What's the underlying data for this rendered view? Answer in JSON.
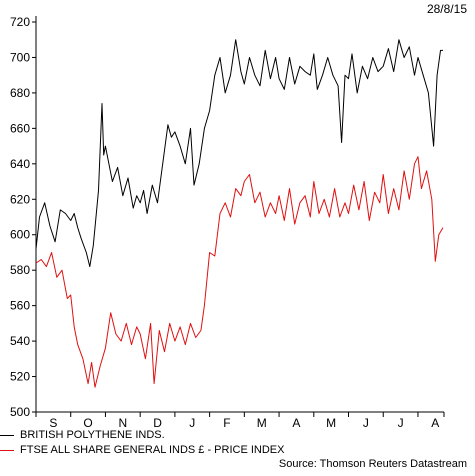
{
  "chart_data": {
    "type": "line",
    "date_label": "28/8/15",
    "source": "Source: Thomson Reuters Datastream",
    "y_ticks": [
      500,
      520,
      540,
      560,
      580,
      600,
      620,
      640,
      660,
      680,
      700,
      720
    ],
    "ylim": [
      500,
      720
    ],
    "month_labels": [
      "S",
      "O",
      "N",
      "D",
      "J",
      "F",
      "M",
      "A",
      "M",
      "J",
      "J",
      "A"
    ],
    "series": [
      {
        "name": "BRITISH POLYTHENE INDS.",
        "color": "#000000",
        "values": [
          [
            0.0,
            592
          ],
          [
            0.1,
            610
          ],
          [
            0.25,
            618
          ],
          [
            0.4,
            605
          ],
          [
            0.55,
            596
          ],
          [
            0.7,
            614
          ],
          [
            0.85,
            612
          ],
          [
            1.0,
            608
          ],
          [
            1.1,
            612
          ],
          [
            1.2,
            604
          ],
          [
            1.3,
            598
          ],
          [
            1.45,
            590
          ],
          [
            1.55,
            582
          ],
          [
            1.65,
            594
          ],
          [
            1.8,
            625
          ],
          [
            1.9,
            674
          ],
          [
            1.95,
            645
          ],
          [
            2.0,
            650
          ],
          [
            2.1,
            640
          ],
          [
            2.2,
            630
          ],
          [
            2.35,
            638
          ],
          [
            2.5,
            622
          ],
          [
            2.65,
            632
          ],
          [
            2.8,
            615
          ],
          [
            2.9,
            622
          ],
          [
            3.0,
            618
          ],
          [
            3.1,
            625
          ],
          [
            3.2,
            612
          ],
          [
            3.35,
            628
          ],
          [
            3.5,
            618
          ],
          [
            3.65,
            640
          ],
          [
            3.8,
            662
          ],
          [
            3.9,
            655
          ],
          [
            4.0,
            658
          ],
          [
            4.15,
            650
          ],
          [
            4.3,
            640
          ],
          [
            4.45,
            660
          ],
          [
            4.55,
            628
          ],
          [
            4.7,
            640
          ],
          [
            4.85,
            660
          ],
          [
            5.0,
            670
          ],
          [
            5.15,
            690
          ],
          [
            5.3,
            700
          ],
          [
            5.45,
            680
          ],
          [
            5.6,
            690
          ],
          [
            5.75,
            710
          ],
          [
            5.9,
            692
          ],
          [
            6.0,
            685
          ],
          [
            6.15,
            700
          ],
          [
            6.3,
            690
          ],
          [
            6.45,
            684
          ],
          [
            6.6,
            704
          ],
          [
            6.75,
            688
          ],
          [
            6.9,
            700
          ],
          [
            7.0,
            688
          ],
          [
            7.15,
            682
          ],
          [
            7.3,
            700
          ],
          [
            7.45,
            685
          ],
          [
            7.6,
            695
          ],
          [
            7.75,
            692
          ],
          [
            7.9,
            690
          ],
          [
            8.0,
            702
          ],
          [
            8.1,
            682
          ],
          [
            8.25,
            690
          ],
          [
            8.4,
            700
          ],
          [
            8.55,
            690
          ],
          [
            8.7,
            684
          ],
          [
            8.8,
            652
          ],
          [
            8.9,
            690
          ],
          [
            9.0,
            688
          ],
          [
            9.1,
            702
          ],
          [
            9.25,
            680
          ],
          [
            9.4,
            695
          ],
          [
            9.55,
            688
          ],
          [
            9.7,
            700
          ],
          [
            9.85,
            692
          ],
          [
            10.0,
            695
          ],
          [
            10.15,
            705
          ],
          [
            10.3,
            692
          ],
          [
            10.45,
            710
          ],
          [
            10.6,
            700
          ],
          [
            10.75,
            706
          ],
          [
            10.9,
            690
          ],
          [
            11.0,
            700
          ],
          [
            11.15,
            690
          ],
          [
            11.3,
            680
          ],
          [
            11.45,
            650
          ],
          [
            11.55,
            690
          ],
          [
            11.65,
            704
          ],
          [
            11.72,
            704
          ]
        ]
      },
      {
        "name": "FTSE ALL SHARE GENERAL INDS £ - PRICE INDEX",
        "color": "#e01010",
        "values": [
          [
            0.0,
            584
          ],
          [
            0.15,
            586
          ],
          [
            0.3,
            582
          ],
          [
            0.45,
            590
          ],
          [
            0.6,
            576
          ],
          [
            0.75,
            580
          ],
          [
            0.9,
            564
          ],
          [
            1.0,
            566
          ],
          [
            1.1,
            548
          ],
          [
            1.2,
            538
          ],
          [
            1.35,
            530
          ],
          [
            1.5,
            516
          ],
          [
            1.6,
            528
          ],
          [
            1.7,
            514
          ],
          [
            1.85,
            526
          ],
          [
            2.0,
            536
          ],
          [
            2.15,
            556
          ],
          [
            2.3,
            544
          ],
          [
            2.45,
            540
          ],
          [
            2.6,
            550
          ],
          [
            2.75,
            538
          ],
          [
            2.9,
            548
          ],
          [
            3.0,
            544
          ],
          [
            3.15,
            530
          ],
          [
            3.3,
            550
          ],
          [
            3.4,
            516
          ],
          [
            3.55,
            546
          ],
          [
            3.7,
            534
          ],
          [
            3.85,
            550
          ],
          [
            4.0,
            540
          ],
          [
            4.15,
            548
          ],
          [
            4.3,
            538
          ],
          [
            4.45,
            550
          ],
          [
            4.6,
            542
          ],
          [
            4.75,
            546
          ],
          [
            4.85,
            560
          ],
          [
            5.0,
            590
          ],
          [
            5.15,
            588
          ],
          [
            5.3,
            612
          ],
          [
            5.45,
            618
          ],
          [
            5.6,
            610
          ],
          [
            5.75,
            626
          ],
          [
            5.9,
            622
          ],
          [
            6.0,
            630
          ],
          [
            6.15,
            634
          ],
          [
            6.3,
            618
          ],
          [
            6.45,
            624
          ],
          [
            6.6,
            610
          ],
          [
            6.75,
            618
          ],
          [
            6.9,
            612
          ],
          [
            7.0,
            622
          ],
          [
            7.15,
            608
          ],
          [
            7.3,
            626
          ],
          [
            7.45,
            606
          ],
          [
            7.6,
            618
          ],
          [
            7.75,
            622
          ],
          [
            7.9,
            610
          ],
          [
            8.0,
            630
          ],
          [
            8.15,
            612
          ],
          [
            8.3,
            620
          ],
          [
            8.45,
            610
          ],
          [
            8.6,
            626
          ],
          [
            8.75,
            610
          ],
          [
            8.9,
            618
          ],
          [
            9.0,
            612
          ],
          [
            9.15,
            628
          ],
          [
            9.3,
            614
          ],
          [
            9.45,
            630
          ],
          [
            9.6,
            608
          ],
          [
            9.75,
            624
          ],
          [
            9.9,
            618
          ],
          [
            10.0,
            634
          ],
          [
            10.15,
            612
          ],
          [
            10.3,
            626
          ],
          [
            10.45,
            614
          ],
          [
            10.6,
            636
          ],
          [
            10.75,
            620
          ],
          [
            10.9,
            640
          ],
          [
            11.0,
            644
          ],
          [
            11.1,
            626
          ],
          [
            11.25,
            636
          ],
          [
            11.4,
            620
          ],
          [
            11.5,
            585
          ],
          [
            11.6,
            600
          ],
          [
            11.72,
            604
          ]
        ]
      }
    ]
  }
}
